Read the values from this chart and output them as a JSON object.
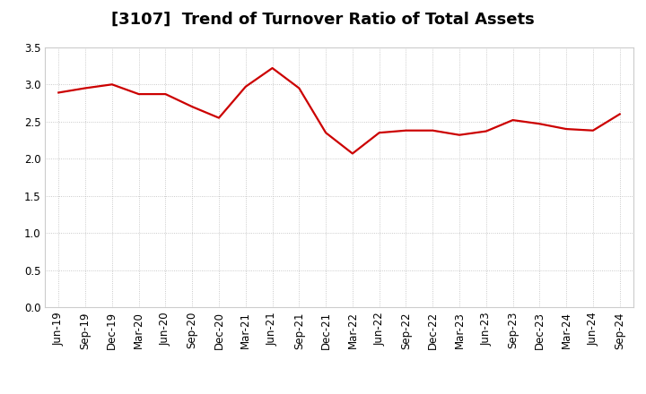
{
  "title": "[3107]  Trend of Turnover Ratio of Total Assets",
  "x_labels": [
    "Jun-19",
    "Sep-19",
    "Dec-19",
    "Mar-20",
    "Jun-20",
    "Sep-20",
    "Dec-20",
    "Mar-21",
    "Jun-21",
    "Sep-21",
    "Dec-21",
    "Mar-22",
    "Jun-22",
    "Sep-22",
    "Dec-22",
    "Mar-23",
    "Jun-23",
    "Sep-23",
    "Dec-23",
    "Mar-24",
    "Jun-24",
    "Sep-24"
  ],
  "y_values": [
    2.89,
    2.95,
    3.0,
    2.87,
    2.87,
    2.7,
    2.55,
    2.97,
    3.22,
    2.95,
    2.35,
    2.07,
    2.35,
    2.38,
    2.38,
    2.32,
    2.37,
    2.52,
    2.47,
    2.4,
    2.38,
    2.6
  ],
  "line_color": "#cc0000",
  "line_width": 1.6,
  "ylim": [
    0.0,
    3.5
  ],
  "yticks": [
    0.0,
    0.5,
    1.0,
    1.5,
    2.0,
    2.5,
    3.0,
    3.5
  ],
  "background_color": "#ffffff",
  "grid_color": "#bbbbbb",
  "title_fontsize": 13,
  "tick_fontsize": 8.5
}
